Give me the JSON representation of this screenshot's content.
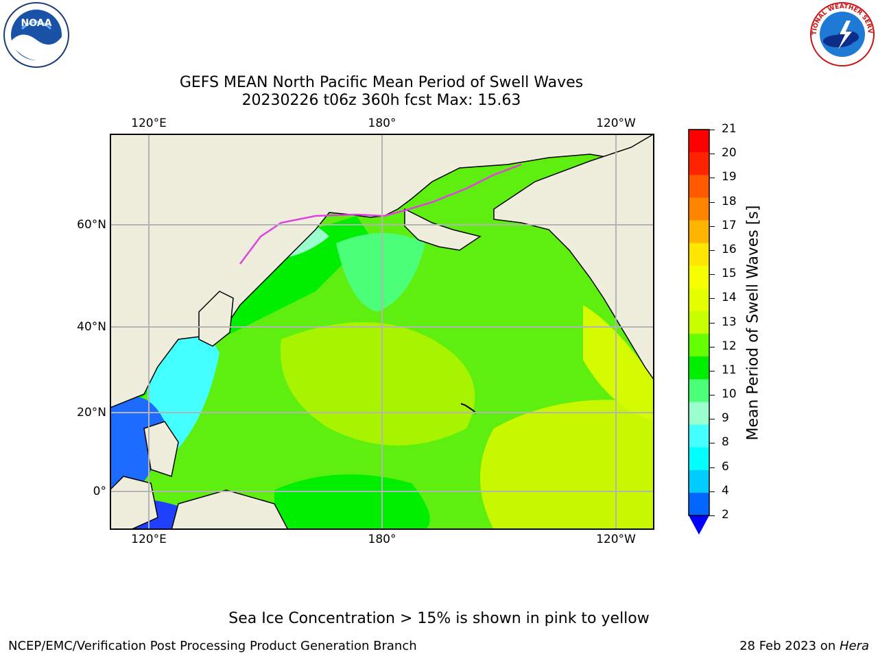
{
  "title": {
    "line1": "GEFS MEAN North Pacific Mean Period of Swell Waves",
    "line2": "20230226 t06z 360h fcst   Max: 15.63"
  },
  "map": {
    "lon_labels": [
      "120°E",
      "180°",
      "120°W"
    ],
    "lat_labels": [
      "60°N",
      "40°N",
      "20°N",
      "0°"
    ],
    "colors": {
      "land": "#efeddc",
      "grid": "#b4b4b4",
      "coast": "#000000",
      "sea_ice_edge": "#e040e0"
    }
  },
  "colorbar": {
    "label": "Mean Period of Swell Waves [s]",
    "ticks": [
      "21",
      "20",
      "19",
      "18",
      "17",
      "16",
      "15",
      "14",
      "13",
      "12",
      "11",
      "10",
      "9",
      "8",
      "6",
      "4",
      "2"
    ],
    "colors_top_to_bottom": [
      "#ff0000",
      "#ff2400",
      "#ff5a00",
      "#ff8400",
      "#ffb400",
      "#ffe600",
      "#f6ff00",
      "#e6ff00",
      "#c8ff00",
      "#64ff00",
      "#00ee00",
      "#4cff78",
      "#99ffcc",
      "#44ffff",
      "#00ffff",
      "#00ccff",
      "#0066ff"
    ],
    "extend_color": "#0000ff"
  },
  "caption": "Sea Ice Concentration > 15% is shown in pink to yellow",
  "footer": {
    "left": "NCEP/EMC/Verification Post Processing Product Generation Branch",
    "right_prefix": "28 Feb 2023 on ",
    "right_machine": "Hera"
  },
  "logos": {
    "noaa": "NOAA",
    "nws": "NATIONAL WEATHER SERVICE"
  }
}
